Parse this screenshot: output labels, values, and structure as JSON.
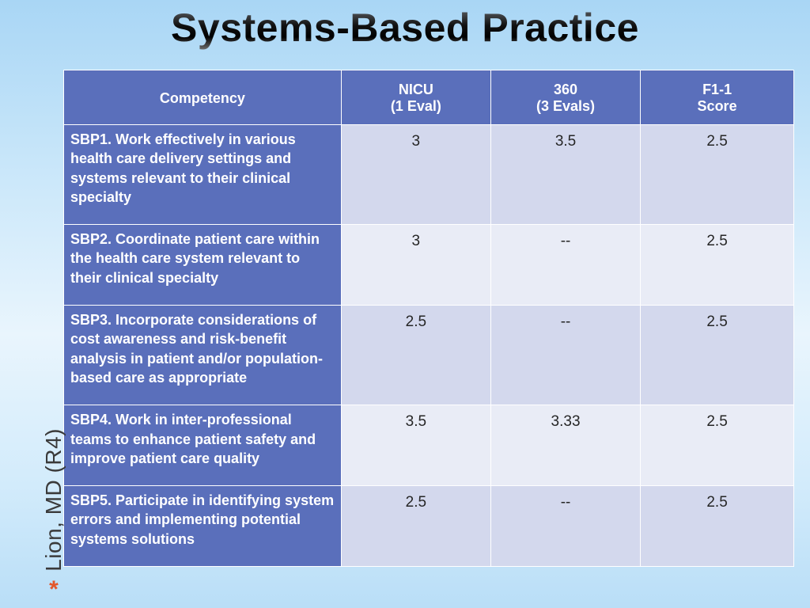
{
  "title": "Systems-Based Practice",
  "title_fontsize": 50,
  "side_label": "Lion, MD (R4)",
  "side_label_fontsize": 28,
  "asterisk": "*",
  "asterisk_fontsize": 30,
  "table": {
    "header_bg": "#5a6fbb",
    "header_fontsize": 18,
    "rowlabel_bg": "#5a6fbb",
    "rowlabel_fontsize": 18,
    "cell_fontsize": 19,
    "row_odd_bg": "#d3d8ed",
    "row_even_bg": "#e9ecf6",
    "col_widths": [
      "38%",
      "20.5%",
      "20.5%",
      "21%"
    ],
    "columns": [
      {
        "main": "Competency",
        "sub": ""
      },
      {
        "main": "NICU",
        "sub": "(1 Eval)"
      },
      {
        "main": "360",
        "sub": "(3 Evals)"
      },
      {
        "main": "F1-1",
        "sub": "Score"
      }
    ],
    "rows": [
      {
        "label": "SBP1. Work effectively in various health care delivery settings and systems relevant to their clinical specialty",
        "cells": [
          "3",
          "3.5",
          "2.5"
        ]
      },
      {
        "label": "SBP2. Coordinate patient care within the health care system relevant to their clinical specialty",
        "cells": [
          "3",
          "--",
          "2.5"
        ]
      },
      {
        "label": "SBP3. Incorporate considerations of cost awareness and risk-benefit analysis in patient and/or population-based care as appropriate",
        "cells": [
          "2.5",
          "--",
          "2.5"
        ]
      },
      {
        "label": "SBP4. Work in inter-professional teams to enhance patient safety and improve patient care quality",
        "cells": [
          "3.5",
          "3.33",
          "2.5"
        ]
      },
      {
        "label": "SBP5. Participate in identifying system errors and implementing potential systems solutions",
        "cells": [
          "2.5",
          "--",
          "2.5"
        ]
      }
    ]
  }
}
